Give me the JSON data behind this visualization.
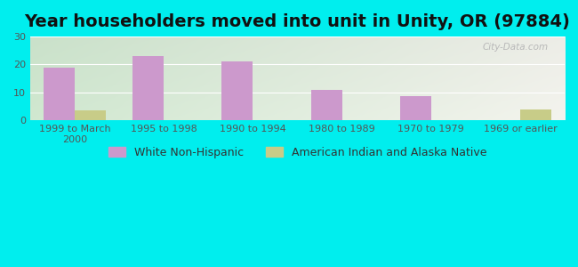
{
  "title": "Year householders moved into unit in Unity, OR (97884)",
  "categories": [
    "1999 to March\n2000",
    "1995 to 1998",
    "1990 to 1994",
    "1980 to 1989",
    "1970 to 1979",
    "1969 or earlier"
  ],
  "white_values": [
    19,
    23,
    21,
    11,
    8.5,
    0
  ],
  "native_values": [
    3.5,
    0,
    0,
    0,
    0,
    4
  ],
  "white_color": "#cc99cc",
  "native_color": "#c8cc88",
  "ylim": [
    0,
    30
  ],
  "yticks": [
    0,
    10,
    20,
    30
  ],
  "bar_width": 0.35,
  "bg_outer": "#00EEEE",
  "bg_plot_left": "#d0e8d0",
  "bg_plot_right": "#f4f4ee",
  "title_fontsize": 14,
  "tick_fontsize": 8,
  "legend_fontsize": 9,
  "watermark": "City-Data.com"
}
